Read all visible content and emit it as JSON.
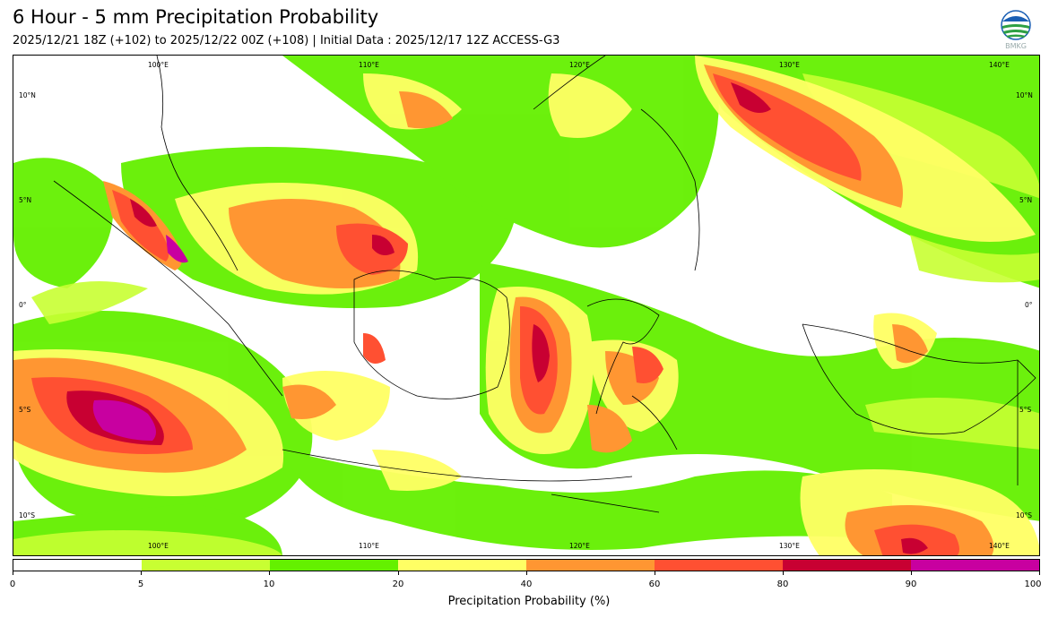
{
  "header": {
    "title": "6 Hour - 5 mm Precipitation Probability",
    "subtitle": "2025/12/21 18Z (+102) to 2025/12/22 00Z (+108) | Initial Data : 2025/12/17 12Z ACCESS-G3"
  },
  "logo": {
    "text": "BMKG"
  },
  "map": {
    "lon_labels": [
      "100°E",
      "110°E",
      "120°E",
      "130°E",
      "140°E"
    ],
    "lat_labels": [
      "10°N",
      "5°N",
      "0°",
      "5°S",
      "10°S"
    ]
  },
  "colorbar": {
    "ticks": [
      "0",
      "5",
      "10",
      "20",
      "40",
      "60",
      "80",
      "90",
      "100"
    ],
    "colors": [
      "#ffffff",
      "#c8ff32",
      "#64f000",
      "#ffff64",
      "#ff9632",
      "#ff5032",
      "#c80032",
      "#c800a0"
    ],
    "label": "Precipitation Probability (%)"
  }
}
